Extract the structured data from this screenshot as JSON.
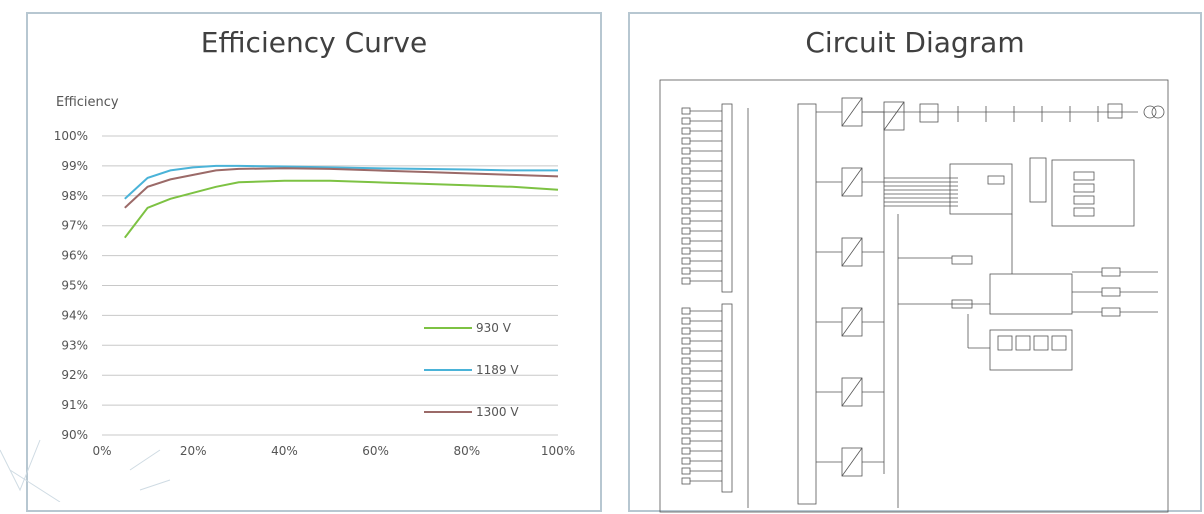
{
  "panels": {
    "left_title": "Efficiency Curve",
    "right_title": "Circuit Diagram"
  },
  "chart_data": {
    "type": "line",
    "title": "Efficiency Curve",
    "ylabel": "Efficiency",
    "xlabel": "",
    "x_ticks": [
      "0%",
      "20%",
      "40%",
      "60%",
      "80%",
      "100%"
    ],
    "y_ticks": [
      "100%",
      "99%",
      "98%",
      "97%",
      "96%",
      "95%",
      "94%",
      "93%",
      "92%",
      "91%",
      "90%"
    ],
    "xlim": [
      0,
      100
    ],
    "ylim": [
      90,
      100
    ],
    "grid": true,
    "legend_position": "lower-right",
    "x": [
      5,
      10,
      15,
      20,
      25,
      30,
      40,
      50,
      60,
      70,
      80,
      90,
      100
    ],
    "series": [
      {
        "name": "930 V",
        "color": "#7dc243",
        "values": [
          96.6,
          97.6,
          97.9,
          98.1,
          98.3,
          98.45,
          98.5,
          98.5,
          98.45,
          98.4,
          98.35,
          98.3,
          98.2
        ]
      },
      {
        "name": "1189 V",
        "color": "#4ab3d8",
        "values": [
          97.9,
          98.6,
          98.85,
          98.95,
          99.0,
          99.0,
          98.98,
          98.95,
          98.92,
          98.9,
          98.88,
          98.85,
          98.85
        ]
      },
      {
        "name": "1300 V",
        "color": "#9b6a68",
        "values": [
          97.6,
          98.3,
          98.55,
          98.7,
          98.85,
          98.9,
          98.92,
          98.9,
          98.85,
          98.8,
          98.75,
          98.7,
          98.65
        ]
      }
    ]
  }
}
